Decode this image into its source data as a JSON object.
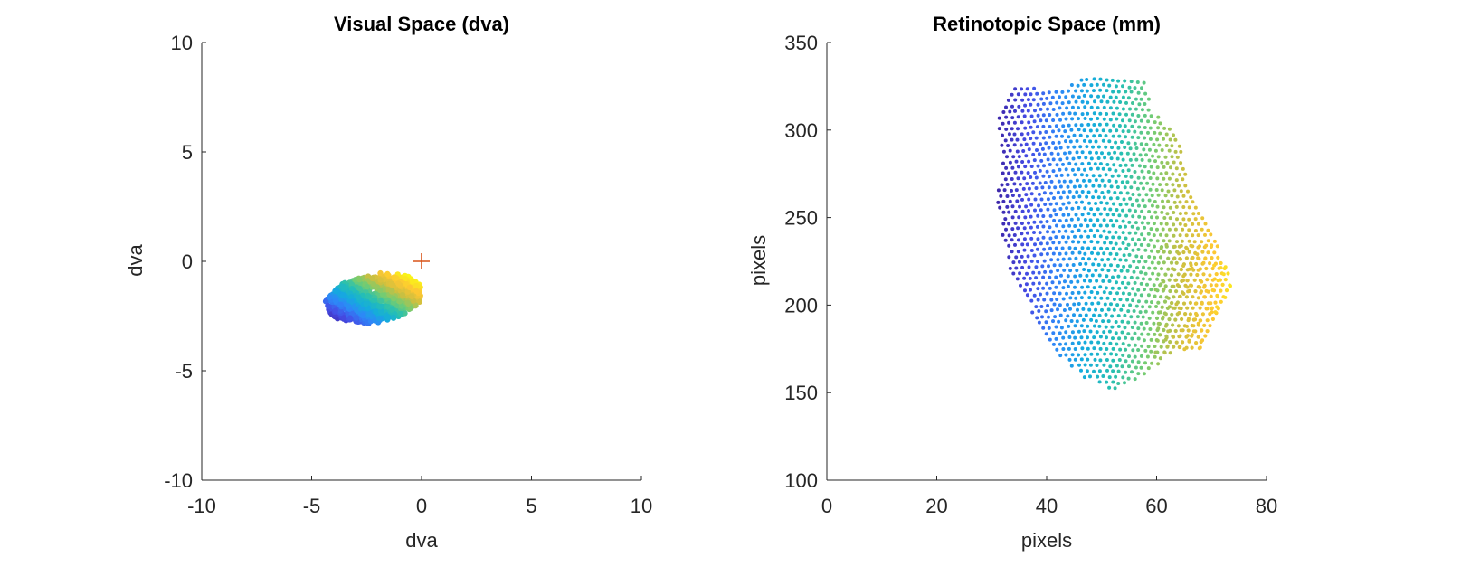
{
  "chart_data": [
    {
      "type": "scatter",
      "title": "Visual Space (dva)",
      "xlabel": "dva",
      "ylabel": "dva",
      "xlim": [
        -10,
        10
      ],
      "ylim": [
        -10,
        10
      ],
      "xticks": [
        "-10",
        "-5",
        "0",
        "5",
        "10"
      ],
      "yticks": [
        "-10",
        "-5",
        "0",
        "5",
        "10"
      ],
      "grid": false,
      "colormap": "parula",
      "marker_cross": {
        "x": 0,
        "y": 0,
        "color": "#D95319"
      },
      "cloud": {
        "x_range": [
          -4.3,
          0.0
        ],
        "y_range": [
          -2.8,
          -0.6
        ],
        "color_by": "x"
      }
    },
    {
      "type": "scatter",
      "title": "Retinotopic Space (mm)",
      "xlabel": "pixels",
      "ylabel": "pixels",
      "xlim": [
        0,
        80
      ],
      "ylim": [
        100,
        350
      ],
      "xticks": [
        "0",
        "20",
        "40",
        "60",
        "80"
      ],
      "yticks": [
        "100",
        "150",
        "200",
        "250",
        "300",
        "350"
      ],
      "grid": false,
      "colormap": "parula",
      "outline": [
        [
          34,
          325
        ],
        [
          42,
          323
        ],
        [
          48,
          332
        ],
        [
          53,
          330
        ],
        [
          58,
          328
        ],
        [
          59,
          312
        ],
        [
          63,
          300
        ],
        [
          65,
          285
        ],
        [
          66,
          270
        ],
        [
          68,
          255
        ],
        [
          70,
          242
        ],
        [
          72,
          228
        ],
        [
          74,
          212
        ],
        [
          73,
          202
        ],
        [
          70,
          190
        ],
        [
          68,
          175
        ],
        [
          62,
          172
        ],
        [
          60,
          165
        ],
        [
          57,
          158
        ],
        [
          52,
          150
        ],
        [
          50,
          154
        ],
        [
          46,
          160
        ],
        [
          43,
          168
        ],
        [
          41,
          175
        ],
        [
          38,
          190
        ],
        [
          36,
          205
        ],
        [
          33,
          222
        ],
        [
          32,
          240
        ],
        [
          31,
          262
        ],
        [
          32,
          285
        ],
        [
          31,
          302
        ],
        [
          32,
          315
        ]
      ],
      "outline_units": "data",
      "color_by": "x"
    }
  ]
}
